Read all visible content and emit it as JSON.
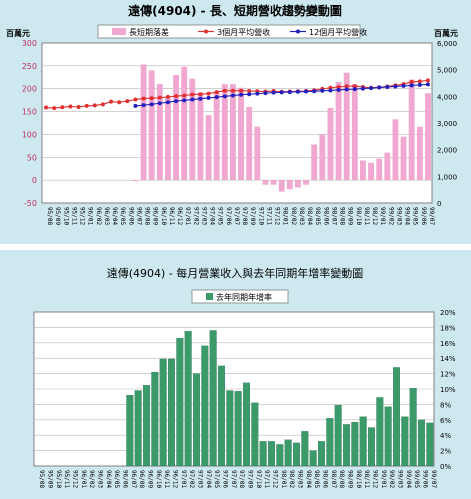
{
  "chart_data": [
    {
      "type": "bar",
      "title": "遠傳(4904) - 長、短期營收趨勢變動圖",
      "unit_left": "百萬元",
      "unit_right": "百萬元",
      "legend_position": "top",
      "grid": true,
      "categories": [
        "95/08",
        "95/09",
        "95/10",
        "95/11",
        "95/12",
        "96/01",
        "96/02",
        "96/03",
        "96/04",
        "96/05",
        "96/06",
        "96/07",
        "96/08",
        "96/09",
        "96/10",
        "96/11",
        "96/12",
        "97/01",
        "97/02",
        "97/03",
        "97/04",
        "97/05",
        "97/06",
        "97/07",
        "97/08",
        "97/09",
        "97/10",
        "97/11",
        "97/12",
        "98/01",
        "98/02",
        "98/03",
        "98/04",
        "98/05",
        "98/06",
        "98/07",
        "98/08",
        "98/09",
        "98/10",
        "98/11",
        "98/12",
        "99/01",
        "99/02",
        "99/03",
        "99/04",
        "99/05",
        "99/06",
        "99/07"
      ],
      "ylim_left": [
        -50,
        300
      ],
      "yticks_left": [
        300,
        250,
        200,
        150,
        100,
        50,
        0,
        -50
      ],
      "ylim_right": [
        0,
        6000
      ],
      "yticks_right": [
        "6,000",
        "5,000",
        "4,000",
        "3,000",
        "2,000",
        "1,000",
        "0"
      ],
      "series": [
        {
          "name": "長短期落差",
          "kind": "bar",
          "axis": "left",
          "color": "#f0a8d0",
          "values": [
            null,
            null,
            null,
            null,
            null,
            null,
            null,
            null,
            null,
            null,
            null,
            0,
            253,
            240,
            210,
            180,
            230,
            248,
            222,
            192,
            142,
            192,
            210,
            210,
            202,
            160,
            117,
            -10,
            -10,
            -25,
            -20,
            -16,
            -10,
            78,
            100,
            158,
            215,
            235,
            210,
            43,
            38,
            47,
            60,
            133,
            95,
            220,
            117,
            190
          ]
        },
        {
          "name": "3個月平均營收",
          "kind": "line",
          "axis": "right",
          "color": "#e03030",
          "values": [
            3580,
            3560,
            3590,
            3620,
            3600,
            3640,
            3660,
            3700,
            3800,
            3780,
            3820,
            3880,
            3920,
            3930,
            3950,
            3980,
            4010,
            4030,
            4070,
            4080,
            4100,
            4160,
            4210,
            4210,
            4210,
            4200,
            4190,
            4180,
            4200,
            4170,
            4180,
            4190,
            4200,
            4230,
            4280,
            4320,
            4350,
            4380,
            4380,
            4350,
            4320,
            4340,
            4370,
            4410,
            4460,
            4540,
            4560,
            4600
          ]
        },
        {
          "name": "12個月平均營收",
          "kind": "line",
          "axis": "right",
          "color": "#2020c0",
          "values": [
            null,
            null,
            null,
            null,
            null,
            null,
            null,
            null,
            null,
            null,
            null,
            3640,
            3670,
            3700,
            3740,
            3780,
            3820,
            3850,
            3880,
            3910,
            3940,
            3970,
            4000,
            4030,
            4060,
            4080,
            4100,
            4120,
            4140,
            4150,
            4160,
            4170,
            4180,
            4190,
            4210,
            4220,
            4240,
            4260,
            4270,
            4290,
            4310,
            4330,
            4350,
            4370,
            4390,
            4410,
            4430,
            4450
          ]
        }
      ]
    },
    {
      "type": "bar",
      "title": "遠傳(4904) - 每月營業收入與去年同期年增率變動圖",
      "legend_position": "top",
      "grid": true,
      "categories": [
        "95/08",
        "95/09",
        "95/10",
        "95/11",
        "95/12",
        "96/01",
        "96/02",
        "96/03",
        "96/04",
        "96/05",
        "96/06",
        "96/07",
        "96/08",
        "96/09",
        "96/10",
        "96/11",
        "96/12",
        "97/01",
        "97/02",
        "97/03",
        "97/04",
        "97/05",
        "97/06",
        "97/07",
        "97/08",
        "97/09",
        "97/10",
        "97/11",
        "97/12",
        "98/01",
        "98/02",
        "98/03",
        "98/04",
        "98/05",
        "98/06",
        "98/07",
        "98/08",
        "98/09",
        "98/10",
        "98/11",
        "98/12",
        "99/01",
        "99/02",
        "99/03",
        "99/04",
        "99/05",
        "99/06",
        "99/07"
      ],
      "ylim": [
        0,
        20
      ],
      "yticks": [
        "20%",
        "18%",
        "16%",
        "14%",
        "12%",
        "10%",
        "8%",
        "6%",
        "4%",
        "2%",
        "0%"
      ],
      "series": [
        {
          "name": "去年同期年增率",
          "color": "#3a9a6a",
          "values": [
            0,
            0,
            0,
            0,
            0,
            0,
            0,
            0,
            0,
            0,
            0,
            9.2,
            9.8,
            10.5,
            12.2,
            13.9,
            13.9,
            16.6,
            17.5,
            12.0,
            15.6,
            17.6,
            13.0,
            9.8,
            9.7,
            10.8,
            8.2,
            3.2,
            3.2,
            2.8,
            3.4,
            3.0,
            4.5,
            2.0,
            3.2,
            6.2,
            7.9,
            5.4,
            5.7,
            6.4,
            5.0,
            8.9,
            7.7,
            12.8,
            6.4,
            10.1,
            6.0,
            5.6
          ]
        }
      ]
    }
  ]
}
